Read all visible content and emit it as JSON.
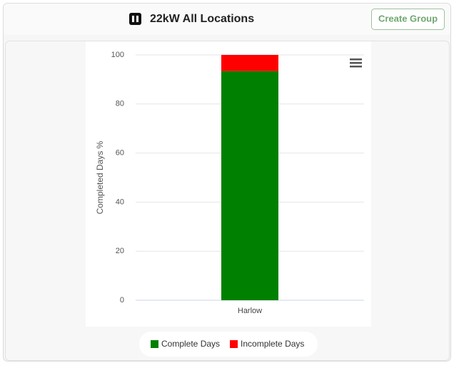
{
  "header": {
    "title": "22kW All Locations",
    "button": "Create Group"
  },
  "chart_data": {
    "type": "stacked-bar",
    "ylabel": "Completed Days %",
    "categories": [
      "Harlow"
    ],
    "series": [
      {
        "name": "Complete Days",
        "color": "#008000",
        "values": [
          93.4
        ]
      },
      {
        "name": "Incomplete Days",
        "color": "#ff0000",
        "values": [
          6.6
        ]
      }
    ],
    "ylim": [
      0,
      100
    ],
    "yticks": [
      0,
      20,
      40,
      60,
      80,
      100
    ],
    "grid": true,
    "legend": "bottom"
  }
}
